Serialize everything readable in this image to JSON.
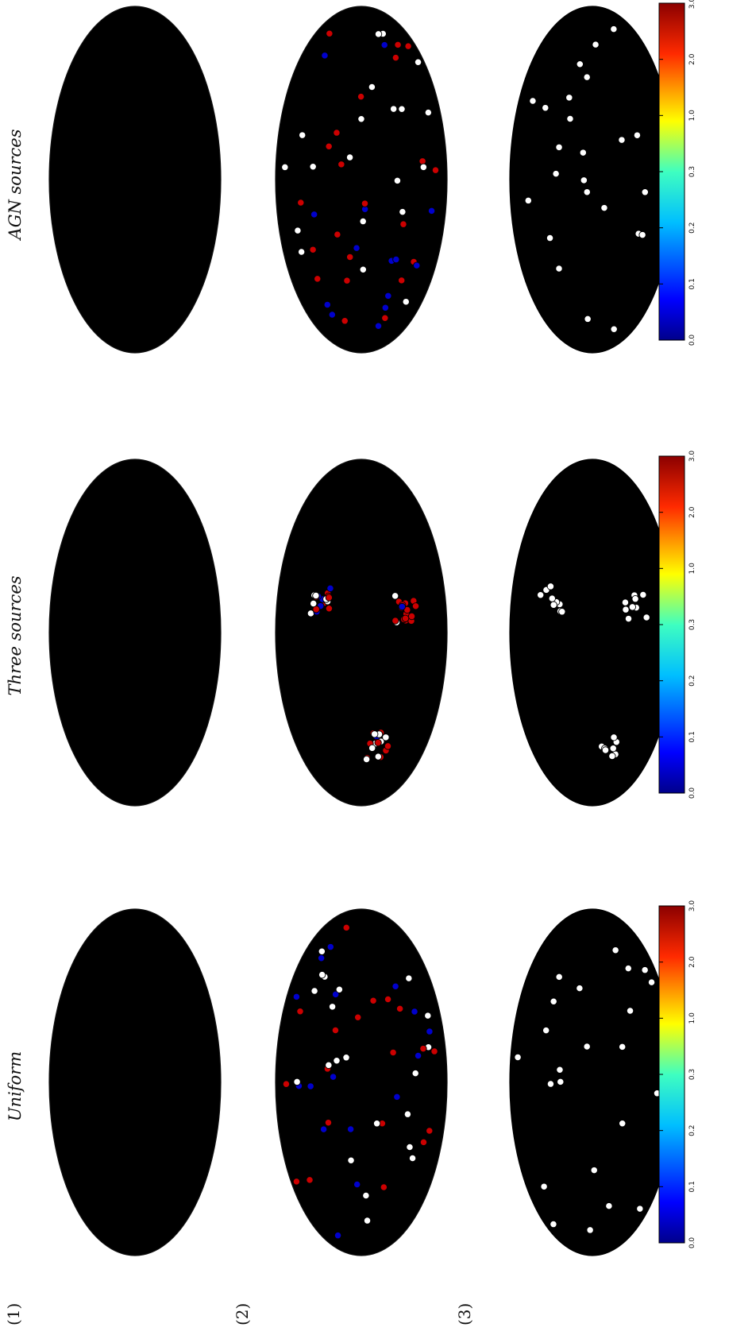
{
  "figure": {
    "row_labels": [
      "(1)",
      "(2)",
      "(3)"
    ],
    "column_titles": [
      "Uniform",
      "Three sources",
      "AGN sources"
    ],
    "colorbar_ticks": [
      "0.0",
      "0.1",
      "0.2",
      "0.3",
      "1.0",
      "2.0",
      "3.0"
    ]
  },
  "colors": {
    "event": "#000000",
    "positive_charge": "#cc0000",
    "negative_charge": "#0000cc",
    "neutral": "#ffffff",
    "map_low": "#00008b",
    "map_high": "#8b0000"
  }
}
